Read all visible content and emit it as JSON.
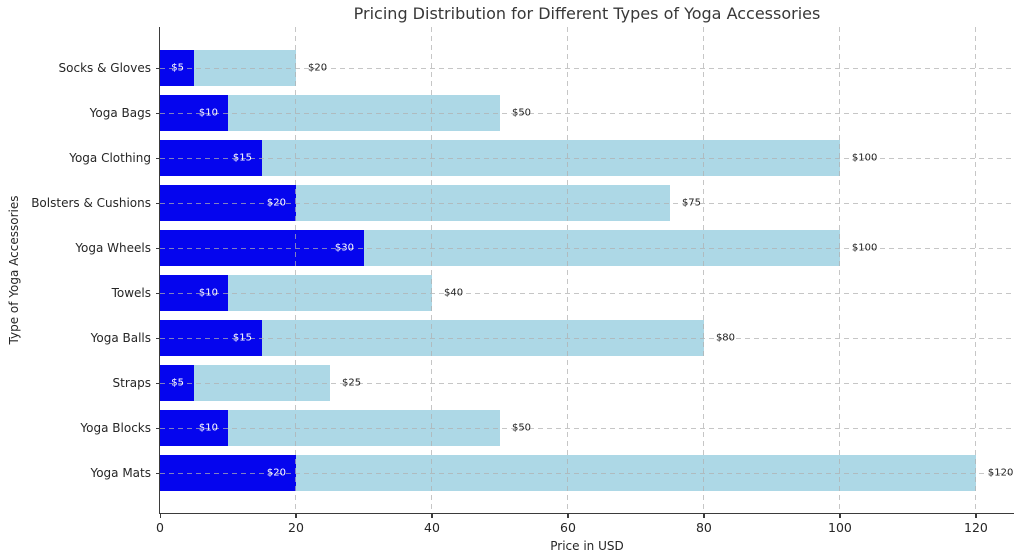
{
  "chart_data": {
    "type": "bar",
    "orientation": "horizontal",
    "title": "Pricing Distribution for Different Types of Yoga Accessories",
    "xlabel": "Price in USD",
    "ylabel": "Type of Yoga Accessories",
    "xlim": [
      0,
      125.6
    ],
    "x_ticks": [
      0,
      20,
      40,
      60,
      80,
      100,
      120
    ],
    "grid": true,
    "grid_style": "dashed",
    "legend_position": "none",
    "categories": [
      "Socks & Gloves",
      "Yoga Bags",
      "Yoga Clothing",
      "Bolsters & Cushions",
      "Yoga Wheels",
      "Towels",
      "Yoga Balls",
      "Straps",
      "Yoga Blocks",
      "Yoga Mats"
    ],
    "series": [
      {
        "name": "max_price",
        "color": "#ADD8E6",
        "values": [
          20,
          50,
          100,
          75,
          100,
          40,
          80,
          25,
          50,
          120
        ],
        "labels": [
          "$20",
          "$50",
          "$100",
          "$75",
          "$100",
          "$40",
          "$80",
          "$25",
          "$50",
          "$120"
        ]
      },
      {
        "name": "min_price",
        "color": "#0505EE",
        "values": [
          5,
          10,
          15,
          20,
          30,
          10,
          15,
          5,
          10,
          20
        ],
        "labels": [
          "$5",
          "$10",
          "$15",
          "$20",
          "$30",
          "$10",
          "$15",
          "$5",
          "$10",
          "$20"
        ]
      }
    ]
  },
  "colors": {
    "background": "#ffffff",
    "max_bar": "#ADD8E6",
    "min_bar": "#0505EE",
    "grid": "#b0b0b0",
    "spine": "#3b3b3b",
    "text": "#262626",
    "title": "#383838",
    "min_label_text": "#ffffff"
  }
}
